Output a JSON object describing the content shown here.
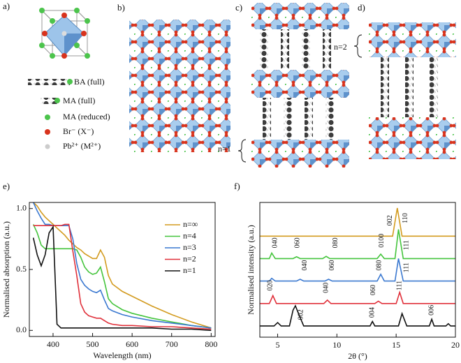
{
  "panels": {
    "a": {
      "label": "a)",
      "legend": [
        "BA (full)",
        "MA (full)",
        "MA (reduced)",
        "Br⁻ (X⁻)",
        "Pb²⁺ (M²⁺)"
      ]
    },
    "b": {
      "label": "b)"
    },
    "c": {
      "label": "c)",
      "annotation": "n=1"
    },
    "d": {
      "label": "d)",
      "annotation": "n=2"
    }
  },
  "chart_data": [
    {
      "type": "line",
      "panel_label": "e)",
      "x_label": "Wavelength (nm)",
      "y_label": "Normalised absorption (a.u.)",
      "xlim": [
        340,
        810
      ],
      "ylim": [
        -0.05,
        1.05
      ],
      "xticks": [
        400,
        500,
        600,
        700,
        800
      ],
      "yticks": [
        {
          "value": 0,
          "label": "0.0"
        },
        0.5,
        {
          "value": 1,
          "label": "1.0"
        }
      ],
      "legend": "upper right",
      "x": [
        350,
        360,
        370,
        380,
        390,
        400,
        410,
        420,
        430,
        440,
        450,
        460,
        470,
        480,
        490,
        500,
        510,
        520,
        530,
        540,
        550,
        575,
        600,
        650,
        700,
        750,
        800
      ],
      "series": [
        {
          "name": "n=∞",
          "color": "#d39b1f",
          "values": [
            1.05,
            1.02,
            0.97,
            0.93,
            0.9,
            0.87,
            0.84,
            0.81,
            0.78,
            0.74,
            0.71,
            0.68,
            0.66,
            0.63,
            0.61,
            0.59,
            0.59,
            0.66,
            0.6,
            0.45,
            0.38,
            0.32,
            0.28,
            0.2,
            0.13,
            0.07,
            0.02
          ]
        },
        {
          "name": "n=4",
          "color": "#44c43c",
          "values": [
            0.87,
            0.8,
            0.7,
            0.67,
            0.67,
            0.67,
            0.67,
            0.67,
            0.67,
            0.67,
            0.67,
            0.66,
            0.6,
            0.52,
            0.48,
            0.46,
            0.47,
            0.52,
            0.4,
            0.26,
            0.22,
            0.17,
            0.14,
            0.1,
            0.07,
            0.04,
            0.02
          ]
        },
        {
          "name": "n=3",
          "color": "#3a78d0",
          "values": [
            1.05,
            0.98,
            0.92,
            0.87,
            0.87,
            0.86,
            0.86,
            0.86,
            0.86,
            0.86,
            0.75,
            0.55,
            0.42,
            0.37,
            0.34,
            0.32,
            0.31,
            0.33,
            0.25,
            0.18,
            0.16,
            0.13,
            0.11,
            0.08,
            0.06,
            0.04,
            0.02
          ]
        },
        {
          "name": "n=2",
          "color": "#e0303a",
          "values": [
            0.86,
            0.86,
            0.86,
            0.86,
            0.86,
            0.86,
            0.86,
            0.86,
            0.87,
            0.87,
            0.65,
            0.45,
            0.22,
            0.15,
            0.12,
            0.11,
            0.1,
            0.1,
            0.08,
            0.06,
            0.05,
            0.04,
            0.04,
            0.03,
            0.03,
            0.02,
            0.01
          ]
        },
        {
          "name": "n=1",
          "color": "#111111",
          "values": [
            0.76,
            0.62,
            0.53,
            0.62,
            0.8,
            0.85,
            0.05,
            0.02,
            0.02,
            0.02,
            0.02,
            0.02,
            0.02,
            0.02,
            0.02,
            0.02,
            0.02,
            0.02,
            0.02,
            0.02,
            0.02,
            0.02,
            0.02,
            0.02,
            0.01,
            0.01,
            0
          ]
        }
      ]
    },
    {
      "type": "line",
      "panel_label": "f)",
      "x_label": "2θ (°)",
      "y_label": "Normalised intensity (a.u.)",
      "xlim": [
        3.5,
        20
      ],
      "ylim": [
        0,
        6
      ],
      "xticks": [
        5,
        10,
        15,
        20
      ],
      "series": [
        {
          "color": "#d39b1f",
          "x": [
            3.5,
            14.7,
            15.1,
            15.5,
            20
          ],
          "values": [
            4.5,
            4.5,
            5.75,
            4.5,
            4.5
          ]
        },
        {
          "color": "#44c43c",
          "x": [
            3.5,
            4.3,
            4.5,
            4.8,
            6.3,
            6.6,
            6.9,
            8.8,
            9.1,
            9.4,
            13.4,
            13.7,
            14.0,
            14.9,
            15.2,
            15.6,
            20
          ],
          "values": [
            3.5,
            3.5,
            3.75,
            3.5,
            3.5,
            3.58,
            3.5,
            3.5,
            3.6,
            3.5,
            3.5,
            3.7,
            3.5,
            3.5,
            4.8,
            3.5,
            3.5
          ]
        },
        {
          "color": "#3a78d0",
          "x": [
            3.5,
            4.3,
            4.5,
            4.8,
            6.6,
            6.9,
            7.2,
            9.0,
            9.3,
            9.6,
            13.4,
            13.7,
            14.0,
            14.9,
            15.2,
            15.6,
            20
          ],
          "values": [
            2.5,
            2.5,
            2.62,
            2.5,
            2.5,
            2.58,
            2.5,
            2.5,
            2.58,
            2.5,
            2.5,
            2.8,
            2.5,
            2.5,
            3.5,
            2.5,
            2.5
          ]
        },
        {
          "color": "#e0303a",
          "x": [
            3.5,
            4.3,
            4.6,
            4.9,
            8.9,
            9.2,
            9.5,
            13.2,
            13.5,
            13.8,
            15.0,
            15.3,
            15.6,
            20
          ],
          "values": [
            1.5,
            1.5,
            1.85,
            1.5,
            1.5,
            1.65,
            1.5,
            1.5,
            1.6,
            1.5,
            1.5,
            2.0,
            1.5,
            1.5
          ]
        },
        {
          "color": "#111111",
          "x": [
            3.5,
            4.7,
            5.0,
            5.3,
            6.0,
            6.3,
            6.5,
            6.8,
            7.2,
            12.8,
            13.0,
            13.2,
            15.2,
            15.5,
            15.9,
            17.8,
            18.0,
            18.2,
            19.2,
            19.4,
            19.6,
            20
          ],
          "values": [
            0.5,
            0.5,
            0.65,
            0.5,
            0.5,
            1.2,
            1.4,
            1.0,
            0.5,
            0.5,
            0.7,
            0.5,
            0.5,
            1.05,
            0.5,
            0.5,
            0.8,
            0.5,
            0.5,
            0.6,
            0.5,
            0.5
          ]
        }
      ],
      "annotations": [
        {
          "text": "002",
          "x": 14.5,
          "y": 5.2
        },
        {
          "text": "110",
          "x": 15.8,
          "y": 5.3
        },
        {
          "text": "040",
          "x": 4.8,
          "y": 4.2
        },
        {
          "text": "060",
          "x": 6.7,
          "y": 4.2
        },
        {
          "text": "080",
          "x": 9.9,
          "y": 4.2
        },
        {
          "text": "0100",
          "x": 13.8,
          "y": 4.3
        },
        {
          "text": "111",
          "x": 15.9,
          "y": 4.1
        },
        {
          "text": "040",
          "x": 7.3,
          "y": 3.2
        },
        {
          "text": "060",
          "x": 9.6,
          "y": 3.2
        },
        {
          "text": "080",
          "x": 13.6,
          "y": 3.2
        },
        {
          "text": "111",
          "x": 15.9,
          "y": 3.1
        },
        {
          "text": "020",
          "x": 4.4,
          "y": 2.3
        },
        {
          "text": "040",
          "x": 9.1,
          "y": 2.2
        },
        {
          "text": "060",
          "x": 13.1,
          "y": 2.1
        },
        {
          "text": "111",
          "x": 15.3,
          "y": 2.3
        },
        {
          "text": "002",
          "x": 7.0,
          "y": 1.0
        },
        {
          "text": "004",
          "x": 13.0,
          "y": 1.1
        },
        {
          "text": "006",
          "x": 18.0,
          "y": 1.2
        }
      ]
    }
  ]
}
